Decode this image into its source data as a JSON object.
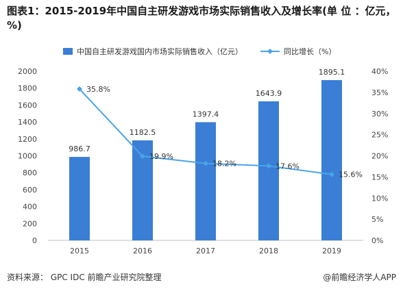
{
  "title": "图表1：2015-2019年中国自主研发游戏市场实际销售收入及增长率(单 位 ：亿元，%)",
  "source": "资料来源： GPC IDC 前瞻产业研究院整理",
  "brand": "@前瞻经济学人APP",
  "chart_data": {
    "type": "bar",
    "categories": [
      "2015",
      "2016",
      "2017",
      "2018",
      "2019"
    ],
    "series": [
      {
        "name": "中国自主研发游戏国内市场实际销售收入（亿元）",
        "type": "bar",
        "axis": "left",
        "values": [
          986.7,
          1182.5,
          1397.4,
          1643.9,
          1895.1
        ],
        "labels": [
          "986.7",
          "1182.5",
          "1397.4",
          "1643.9",
          "1895.1"
        ],
        "color": "#3a7ed6"
      },
      {
        "name": "同比增长（%）",
        "type": "line",
        "axis": "right",
        "values": [
          35.8,
          19.9,
          18.2,
          17.6,
          15.6
        ],
        "labels": [
          "35.8%",
          "19.9%",
          "18.2%",
          "17.6%",
          "15.6%"
        ],
        "color": "#4aa3e8"
      }
    ],
    "ylim_left": [
      0,
      2000
    ],
    "yticks_left": [
      "0",
      "200",
      "400",
      "600",
      "800",
      "1000",
      "1200",
      "1400",
      "1600",
      "1800",
      "2000"
    ],
    "ylim_right": [
      0,
      40
    ],
    "yticks_right": [
      "0%",
      "5%",
      "10%",
      "15%",
      "20%",
      "25%",
      "30%",
      "35%",
      "40%"
    ],
    "legend": "top",
    "grid": false
  }
}
